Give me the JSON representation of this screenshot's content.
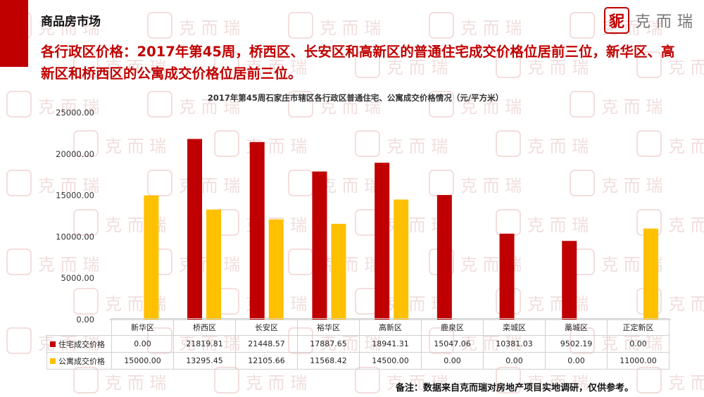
{
  "header": {
    "section_title": "商品房市场",
    "logo_mark": "䝚",
    "logo_text": "克而瑞",
    "headline": "各行政区价格：2017年第45周，桥西区、长安区和高新区的普通住宅成交价格位居前三位，新华区、高新区和桥西区的公寓成交价格位居前三位。"
  },
  "watermark": {
    "text": "克 而 瑞"
  },
  "colors": {
    "residential": "#c00000",
    "apartment": "#ffc000",
    "accent": "#c00000"
  },
  "chart_data": {
    "type": "bar",
    "title": "2017年第45周石家庄市辖区各行政区普通住宅、公寓成交价格情况（元/平方米）",
    "categories": [
      "新华区",
      "桥西区",
      "长安区",
      "裕华区",
      "高新区",
      "鹿泉区",
      "栾城区",
      "藁城区",
      "正定新区"
    ],
    "series": [
      {
        "name": "住宅成交价格",
        "color": "#c00000",
        "values": [
          0.0,
          21819.81,
          21448.57,
          17887.65,
          18941.31,
          15047.06,
          10381.03,
          9502.19,
          0.0
        ],
        "labels": [
          "0.00",
          "21819.81",
          "21448.57",
          "17887.65",
          "18941.31",
          "15047.06",
          "10381.03",
          "9502.19",
          "0.00"
        ]
      },
      {
        "name": "公寓成交价格",
        "color": "#ffc000",
        "values": [
          15000.0,
          13295.45,
          12105.66,
          11568.42,
          14500.0,
          0.0,
          0.0,
          0.0,
          11000.0
        ],
        "labels": [
          "15000.00",
          "13295.45",
          "12105.66",
          "11568.42",
          "14500.00",
          "0.00",
          "0.00",
          "0.00",
          "11000.00"
        ]
      }
    ],
    "y_ticks": [
      "0.00",
      "5000.00",
      "10000.00",
      "15000.00",
      "20000.00",
      "25000.00"
    ],
    "ylim": [
      0,
      25000
    ],
    "grid": false,
    "legend": "data-table"
  },
  "footer": {
    "note": "备注：数据来自克而瑞对房地产项目实地调研，仅供参考。"
  }
}
